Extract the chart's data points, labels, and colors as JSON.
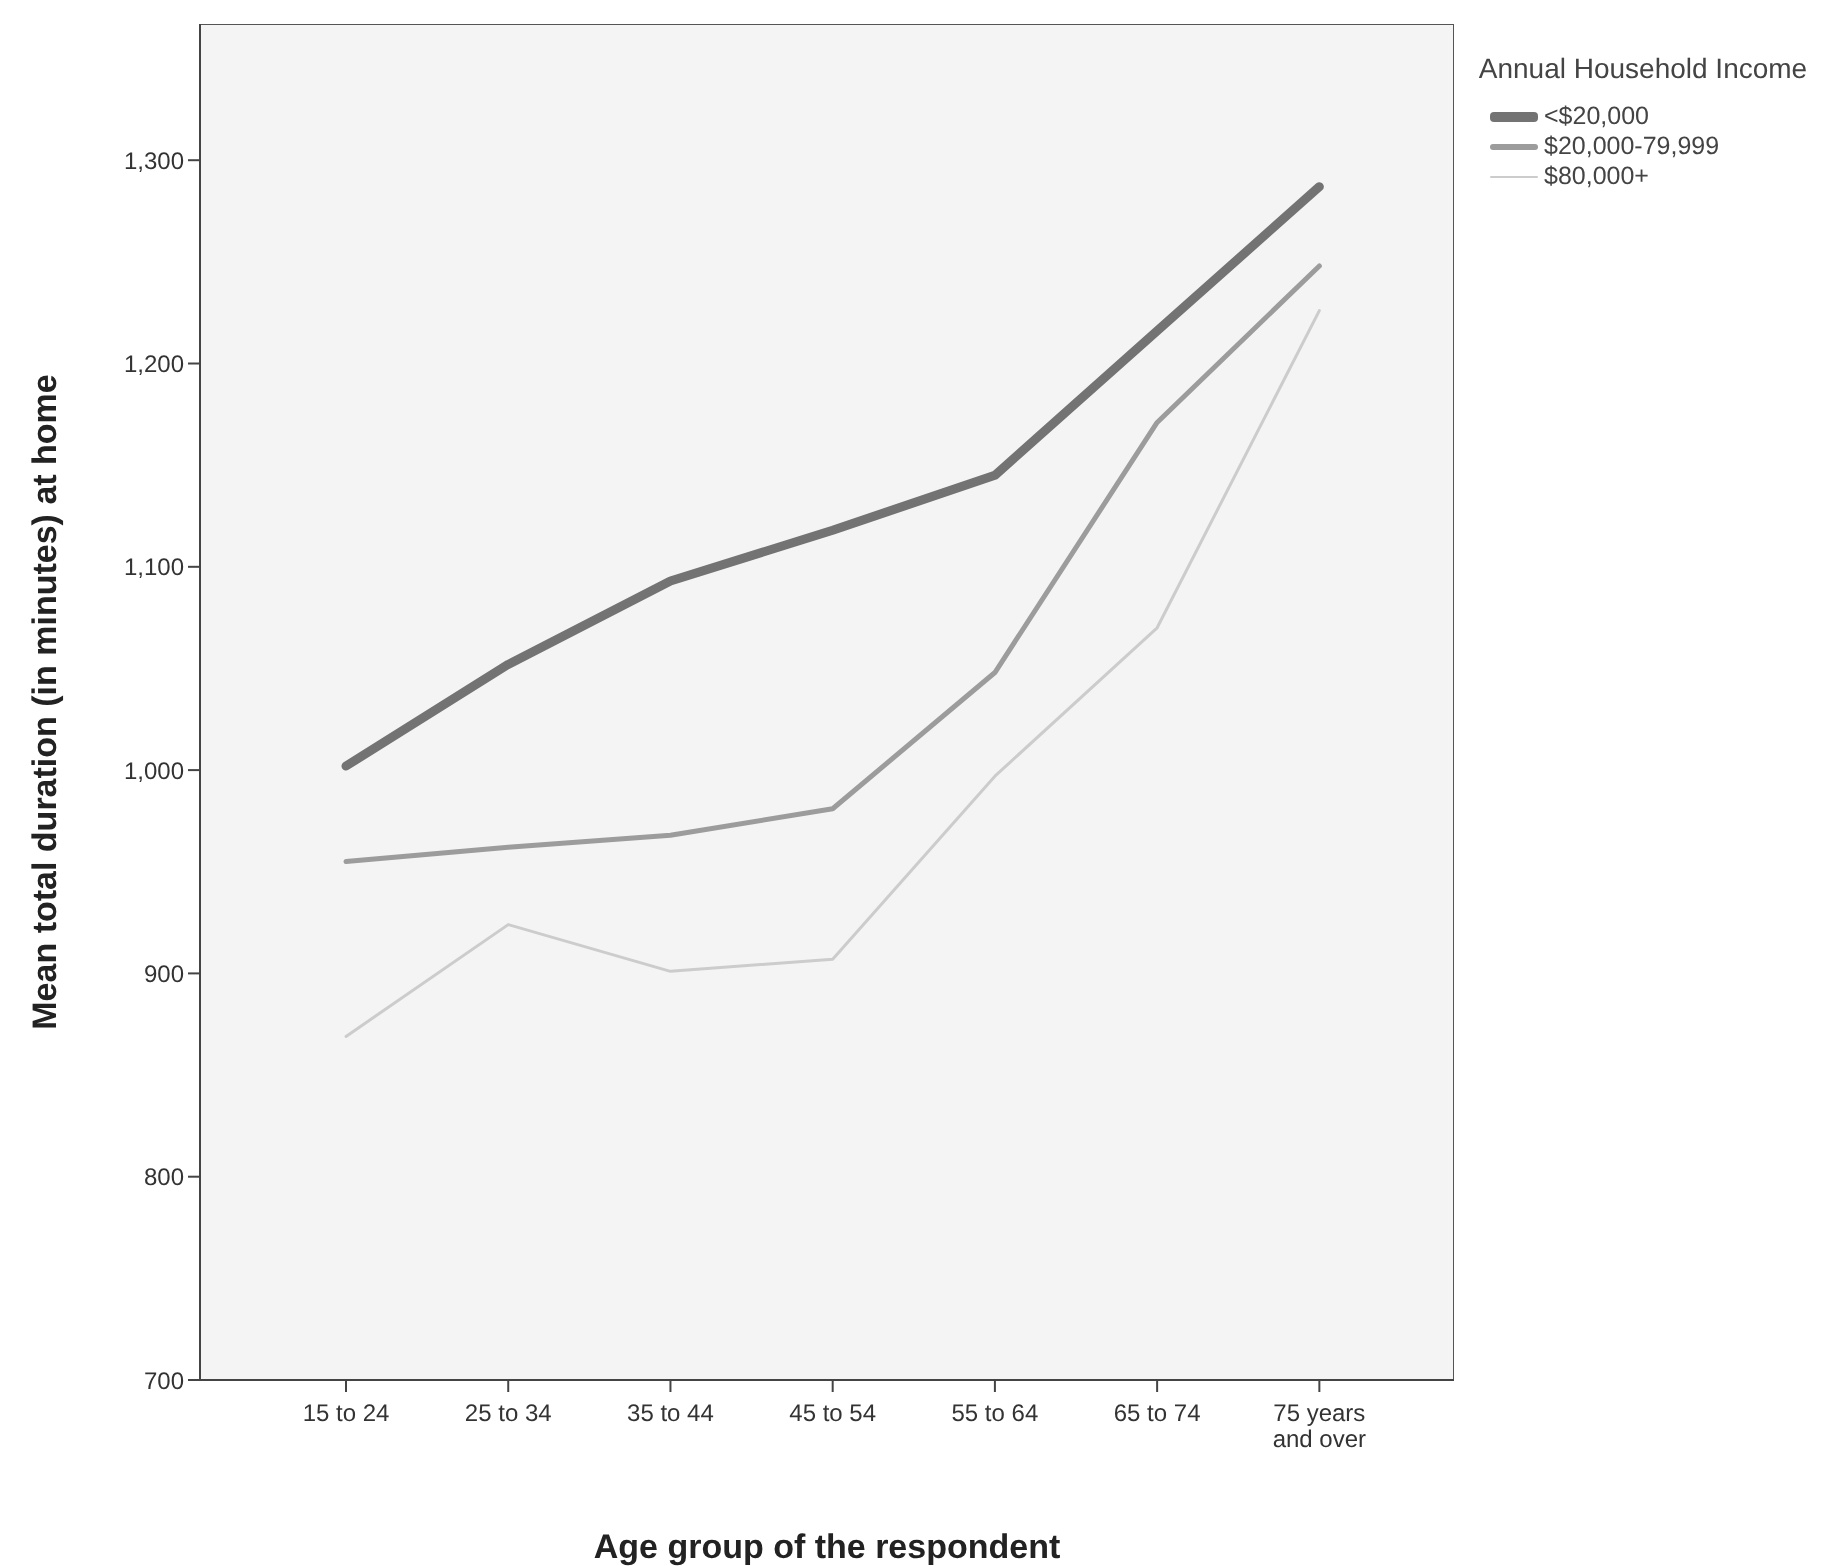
{
  "chart_data": {
    "type": "line",
    "xlabel": "Age group of the respondent",
    "ylabel": "Mean total duration (in minutes) at home",
    "legend_title": "Annual Household Income",
    "categories": [
      "15 to 24",
      "25 to 34",
      "35 to 44",
      "45 to 54",
      "55 to 64",
      "65 to 74",
      "75 years and over"
    ],
    "series": [
      {
        "name": "<$20,000",
        "color": "#737373",
        "values": [
          1002,
          1052,
          1093,
          1118,
          1145,
          1216,
          1287
        ]
      },
      {
        "name": "$20,000-79,999",
        "color": "#9c9c9c",
        "values": [
          955,
          962,
          968,
          981,
          1048,
          1171,
          1248
        ]
      },
      {
        "name": "$80,000+",
        "color": "#cccccc",
        "values": [
          869,
          924,
          901,
          907,
          997,
          1070,
          1226
        ]
      }
    ],
    "ylim": [
      700,
      1367
    ],
    "yticks": [
      700,
      800,
      900,
      {
        "value": 1000,
        "label": "1,000"
      },
      {
        "value": 1100,
        "label": "1,100"
      },
      {
        "value": 1200,
        "label": "1,200"
      },
      {
        "value": 1300,
        "label": "1,300"
      }
    ],
    "grid": false,
    "legend": "top right",
    "marker": "none",
    "line_style": "solid"
  }
}
